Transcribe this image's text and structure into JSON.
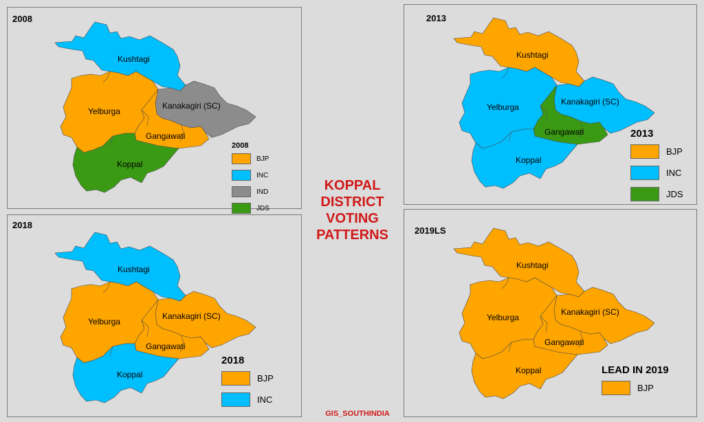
{
  "title_lines": [
    "KOPPAL",
    "DISTRICT",
    "VOTING",
    "PATTERNS"
  ],
  "credit": "GIS_SOUTHINDIA",
  "colors": {
    "BJP": "#ffa500",
    "INC": "#00bfff",
    "IND": "#8c8c8c",
    "JDS": "#3a9a14"
  },
  "constituency_names": [
    "Kushtagi",
    "Yelburga",
    "Kanakagiri (SC)",
    "Gangawati",
    "Koppal"
  ],
  "panels": [
    {
      "year": "2008",
      "legend_title": "2008",
      "legend": [
        "BJP",
        "INC",
        "IND",
        "JDS"
      ],
      "results": {
        "Kushtagi": "INC",
        "Yelburga": "BJP",
        "Kanakagiri (SC)": "IND",
        "Gangawati": "BJP",
        "Koppal": "JDS"
      }
    },
    {
      "year": "2013",
      "legend_title": "2013",
      "legend": [
        "BJP",
        "INC",
        "JDS"
      ],
      "results": {
        "Kushtagi": "BJP",
        "Yelburga": "INC",
        "Kanakagiri (SC)": "INC",
        "Gangawati": "JDS",
        "Koppal": "INC"
      }
    },
    {
      "year": "2018",
      "legend_title": "2018",
      "legend": [
        "BJP",
        "INC"
      ],
      "results": {
        "Kushtagi": "INC",
        "Yelburga": "BJP",
        "Kanakagiri (SC)": "BJP",
        "Gangawati": "BJP",
        "Koppal": "INC"
      }
    },
    {
      "year": "2019LS",
      "legend_title": "LEAD IN 2019",
      "legend": [
        "BJP"
      ],
      "results": {
        "Kushtagi": "BJP",
        "Yelburga": "BJP",
        "Kanakagiri (SC)": "BJP",
        "Gangawati": "BJP",
        "Koppal": "BJP"
      }
    }
  ]
}
